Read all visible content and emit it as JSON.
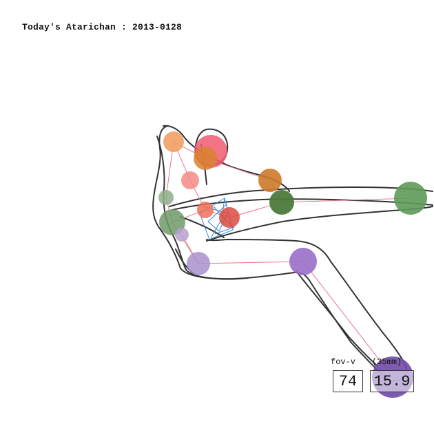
{
  "title": "Today's Atarichan : 2013-0128",
  "fov": {
    "label": "fov-v",
    "unit_label": "(35mm)",
    "vertical_value": "74",
    "mm_value": "15.9"
  },
  "colors": {
    "outline": "#333333",
    "skeleton": "#e8788a",
    "mesh": "#3a86d9",
    "background": "#ffffff"
  }
}
